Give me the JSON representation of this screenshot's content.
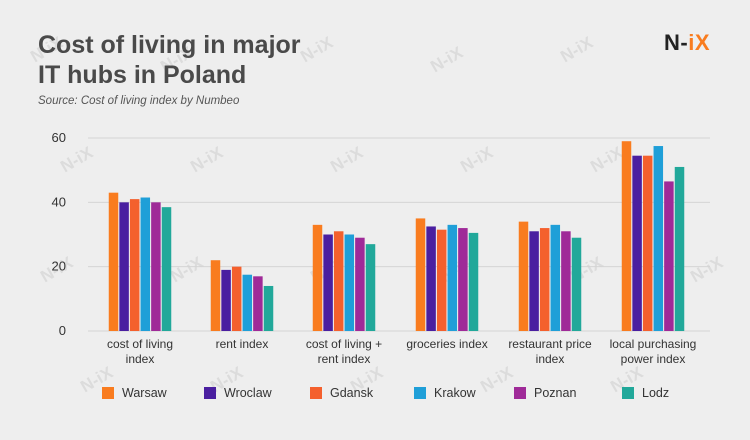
{
  "header": {
    "title": "Cost of living in major IT hubs in Poland",
    "subtitle": "Source: Cost of living  index by Numbeo"
  },
  "logo": {
    "n": "N",
    "dash": "-",
    "ix": "iX"
  },
  "watermark_text": "N-iX",
  "chart_data": {
    "type": "bar",
    "title": "Cost of living in major IT hubs in Poland",
    "xlabel": "",
    "ylabel": "",
    "ylim": [
      0,
      60
    ],
    "yticks": [
      0,
      20,
      40,
      60
    ],
    "grid": true,
    "legend": "bottom",
    "categories": [
      [
        "cost of living",
        "index"
      ],
      [
        "rent index"
      ],
      [
        "cost of living +",
        "rent index"
      ],
      [
        "groceries index"
      ],
      [
        "restaurant price",
        "index"
      ],
      [
        "local purchasing",
        "power index"
      ]
    ],
    "series": [
      {
        "name": "Warsaw",
        "color": "#f97c1f",
        "values": [
          43,
          22,
          33,
          35,
          34,
          59
        ]
      },
      {
        "name": "Wroclaw",
        "color": "#4a1fa0",
        "values": [
          40,
          19,
          30,
          32.5,
          31,
          54.5
        ]
      },
      {
        "name": "Gdansk",
        "color": "#f4602d",
        "values": [
          41,
          20,
          31,
          31.5,
          32,
          54.5
        ]
      },
      {
        "name": "Krakow",
        "color": "#1f9fd8",
        "values": [
          41.5,
          17.5,
          30,
          33,
          33,
          57.5
        ]
      },
      {
        "name": "Poznan",
        "color": "#9f2a98",
        "values": [
          40,
          17,
          29,
          32,
          31,
          46.5
        ]
      },
      {
        "name": "Lodz",
        "color": "#21a89a",
        "values": [
          38.5,
          14,
          27,
          30.5,
          29,
          51
        ]
      }
    ]
  }
}
